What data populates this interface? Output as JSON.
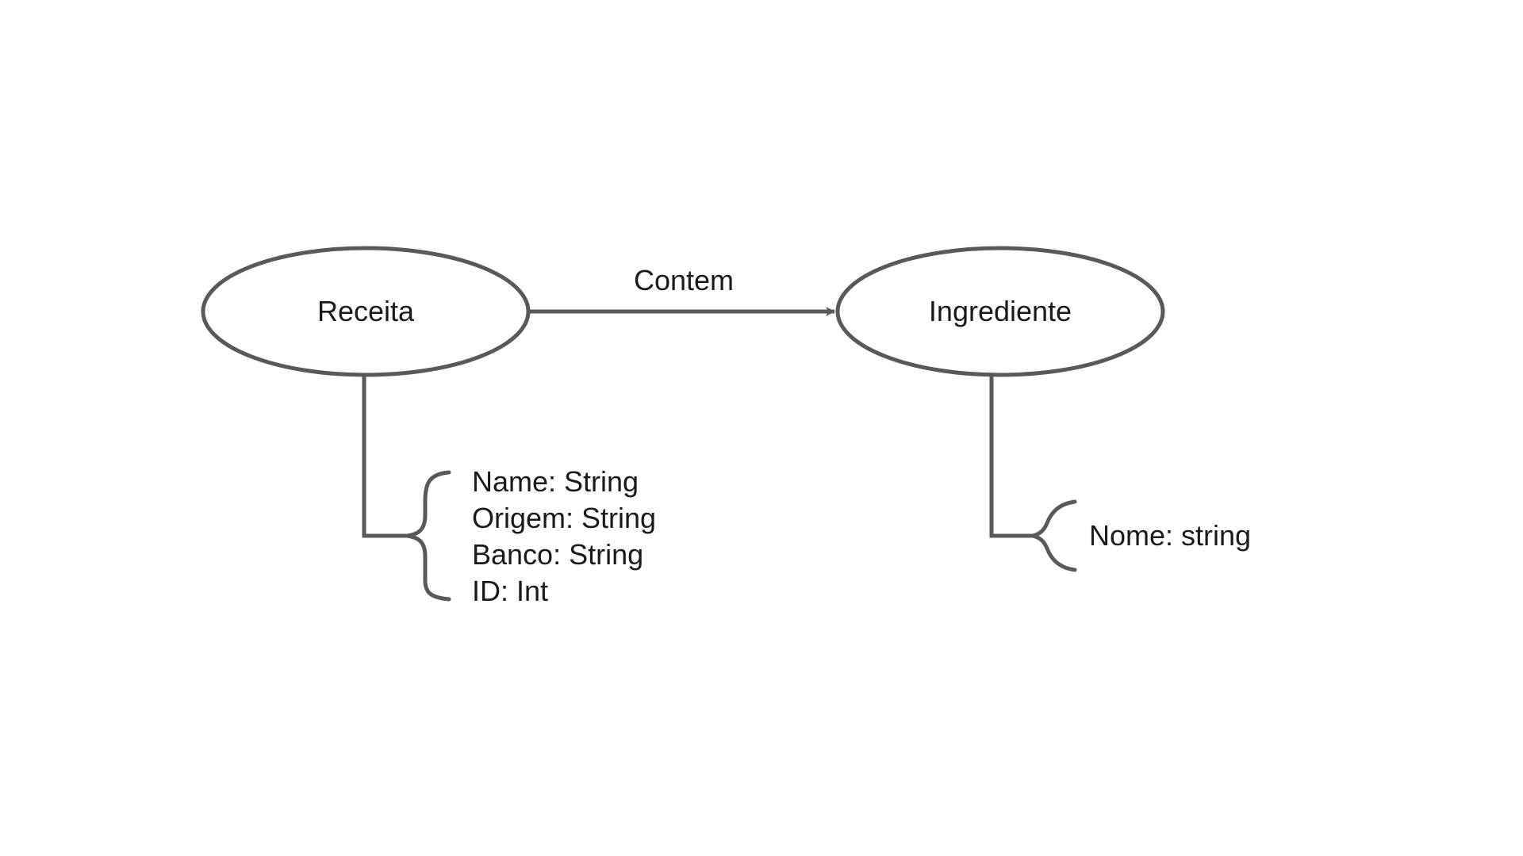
{
  "diagram": {
    "stroke_color": "#595959",
    "text_color": "#1a1a1a",
    "background": "#ffffff",
    "entities": [
      {
        "name": "Receita",
        "attributes": [
          "Name: String",
          "Origem: String",
          "Banco: String",
          "ID: Int"
        ]
      },
      {
        "name": "Ingrediente",
        "attributes": [
          "Nome: string"
        ]
      }
    ],
    "relationship": {
      "label": "Contem",
      "from": "Receita",
      "to": "Ingrediente"
    }
  }
}
